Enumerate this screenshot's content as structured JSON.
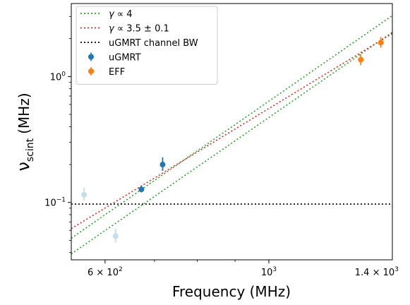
{
  "chart_data": {
    "type": "scatter",
    "title": "",
    "xlabel": "Frequency (MHz)",
    "ylabel_main": "ν",
    "ylabel_sub": "scint",
    "ylabel_unit": "(MHz)",
    "xscale": "log",
    "yscale": "log",
    "xlim": [
      540,
      1470
    ],
    "ylim": [
      0.035,
      3.8
    ],
    "grid": false,
    "legend_position": "top-left",
    "x_ticks": [
      {
        "value": 600,
        "label_main": "6 × 10",
        "label_exp": "2"
      },
      {
        "value": 1000,
        "label_main": "10",
        "label_exp": "3"
      },
      {
        "value": 1400,
        "label_main": "1.4 × 10",
        "label_exp": "3"
      }
    ],
    "y_ticks": [
      {
        "value": 0.1,
        "label_main": "10",
        "label_exp": "−1"
      },
      {
        "value": 1,
        "label_main": "10",
        "label_exp": "0"
      }
    ],
    "lines": [
      {
        "id": "gamma4-upper",
        "name": "γ ∝ 4",
        "color": "#2ca02c",
        "dash": "2,3",
        "x": [
          540,
          1470
        ],
        "y": [
          0.052,
          3.05
        ]
      },
      {
        "id": "gamma4-lower",
        "name": "",
        "color": "#2ca02c",
        "dash": "2,3",
        "x": [
          540,
          1470
        ],
        "y": [
          0.039,
          2.25
        ]
      },
      {
        "id": "gamma35",
        "name": "γ ∝ 3.5 ± 0.1",
        "color": "#d62728",
        "dash": "2,3",
        "x": [
          540,
          1470
        ],
        "y": [
          0.062,
          2.2
        ]
      },
      {
        "id": "channel-bw",
        "name": "uGMRT channel BW",
        "color": "#000000",
        "dash": "2,3",
        "x": [
          540,
          1470
        ],
        "y": [
          0.097,
          0.097
        ]
      }
    ],
    "series": [
      {
        "name": "uGMRT",
        "color": "#1f77b4",
        "points": [
          {
            "x": 672,
            "y": 0.127,
            "yerr_lo": 0.007,
            "yerr_hi": 0.008,
            "faded": false
          },
          {
            "x": 718,
            "y": 0.2,
            "yerr_lo": 0.022,
            "yerr_hi": 0.028,
            "faded": false
          },
          {
            "x": 562,
            "y": 0.115,
            "yerr_lo": 0.012,
            "yerr_hi": 0.016,
            "faded": true
          },
          {
            "x": 620,
            "y": 0.054,
            "yerr_lo": 0.006,
            "yerr_hi": 0.008,
            "faded": true
          }
        ]
      },
      {
        "name": "EFF",
        "color": "#ff7f0e",
        "points": [
          {
            "x": 1332,
            "y": 1.36,
            "yerr_lo": 0.13,
            "yerr_hi": 0.15,
            "faded": false
          },
          {
            "x": 1418,
            "y": 1.86,
            "yerr_lo": 0.17,
            "yerr_hi": 0.2,
            "faded": false
          }
        ]
      }
    ],
    "legend": [
      {
        "kind": "line",
        "color": "#2ca02c",
        "label_prefix": "γ",
        "label": " ∝ 4"
      },
      {
        "kind": "line",
        "color": "#d62728",
        "label_prefix": "γ",
        "label": " ∝ 3.5 ± 0.1"
      },
      {
        "kind": "line",
        "color": "#000000",
        "label_prefix": "",
        "label": "uGMRT channel BW"
      },
      {
        "kind": "point",
        "color": "#1f77b4",
        "label_prefix": "",
        "label": "uGMRT"
      },
      {
        "kind": "point",
        "color": "#ff7f0e",
        "label_prefix": "",
        "label": "EFF"
      }
    ]
  }
}
